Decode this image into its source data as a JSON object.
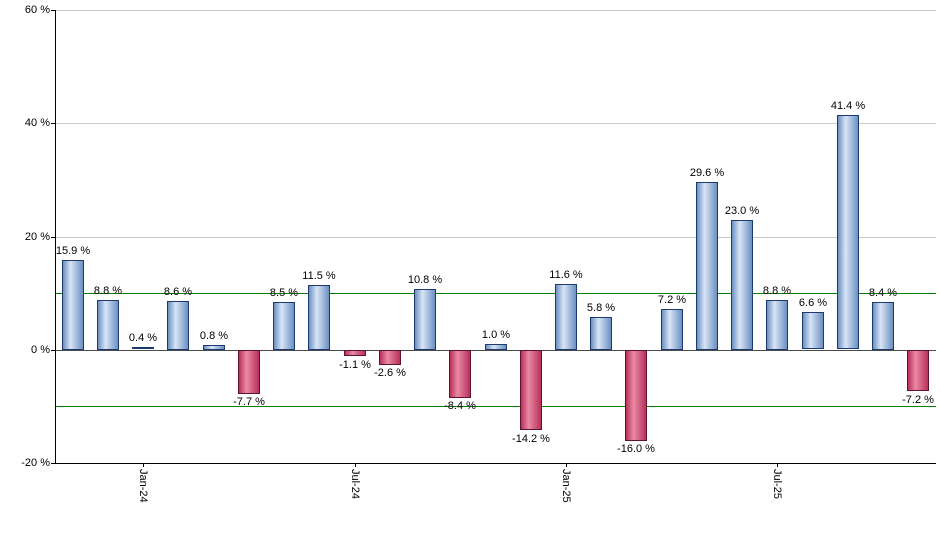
{
  "chart_data": {
    "type": "bar",
    "title": "",
    "xlabel": "",
    "ylabel": "",
    "ylim": [
      -20,
      60
    ],
    "grid": true,
    "legend_position": "none",
    "values": [
      15.9,
      8.8,
      0.4,
      8.6,
      0.8,
      -7.7,
      8.5,
      11.5,
      -1.1,
      -2.6,
      10.8,
      -8.4,
      1.0,
      -14.2,
      11.6,
      5.8,
      -16.0,
      7.2,
      29.6,
      23.0,
      8.8,
      6.6,
      41.4,
      8.4,
      -7.2
    ],
    "value_labels": [
      "15.9 %",
      "8.8 %",
      "0.4 %",
      "8.6 %",
      "0.8 %",
      "-7.7 %",
      "8.5 %",
      "11.5 %",
      "-1.1 %",
      "-2.6 %",
      "10.8 %",
      "-8.4 %",
      "1.0 %",
      "-14.2 %",
      "11.6 %",
      "5.8 %",
      "-16.0 %",
      "7.2 %",
      "29.6 %",
      "23.0 %",
      "8.8 %",
      "6.6 %",
      "41.4 %",
      "8.4 %",
      "-7.2 %"
    ],
    "y_ticks": [
      {
        "value": 60,
        "label": "60 %"
      },
      {
        "value": 40,
        "label": "40 %"
      },
      {
        "value": 20,
        "label": "20 %"
      },
      {
        "value": 0,
        "label": "0 %"
      },
      {
        "value": -20,
        "label": "-20 %"
      }
    ],
    "x_ticks": [
      {
        "index": 2,
        "label": "Jan-24"
      },
      {
        "index": 8,
        "label": "Jul-24"
      },
      {
        "index": 14,
        "label": "Jan-25"
      },
      {
        "index": 20,
        "label": "Jul-25"
      }
    ],
    "threshold_lines": [
      10,
      -10
    ],
    "colors": {
      "positive_bar_edge": "#6b90c2",
      "positive_bar_center": "#d9e5f6",
      "positive_bar_border": "#1c3a6e",
      "negative_bar_edge": "#b8305a",
      "negative_bar_center": "#ea8aa4",
      "negative_bar_border": "#5e1230",
      "threshold_line": "#007f00",
      "gridline": "#c9c9c9",
      "zero_line": "#4a4a4a",
      "axis": "#000000",
      "background": "#ffffff"
    }
  }
}
